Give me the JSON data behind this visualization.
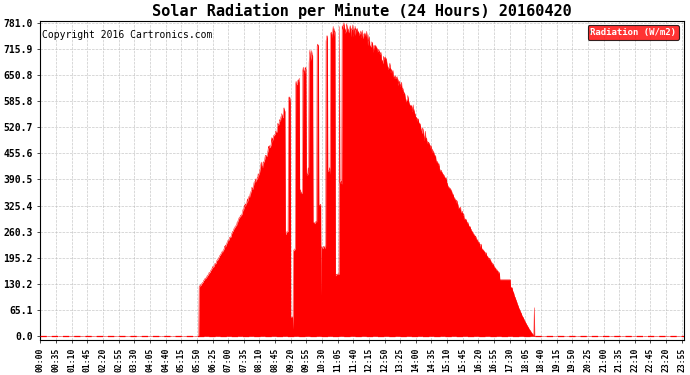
{
  "title": "Solar Radiation per Minute (24 Hours) 20160420",
  "copyright": "Copyright 2016 Cartronics.com",
  "ylabel": "Radiation (W/m2)",
  "y_ticks": [
    0.0,
    65.1,
    130.2,
    195.2,
    260.3,
    325.4,
    390.5,
    455.6,
    520.7,
    585.8,
    650.8,
    715.9,
    781.0
  ],
  "ymax": 781.0,
  "fill_color": "#FF0000",
  "line_color": "#FF0000",
  "dashed_line_color": "#FF0000",
  "bg_color": "#FFFFFF",
  "grid_color": "#BBBBBB",
  "legend_bg": "#FF0000",
  "legend_text_color": "#FFFFFF",
  "title_fontsize": 11,
  "copyright_fontsize": 7,
  "x_tick_interval_minutes": 35,
  "total_minutes": 1440,
  "sunrise_minute": 355,
  "sunset_minute": 1105,
  "solar_noon": 680,
  "peak_value": 781.0
}
